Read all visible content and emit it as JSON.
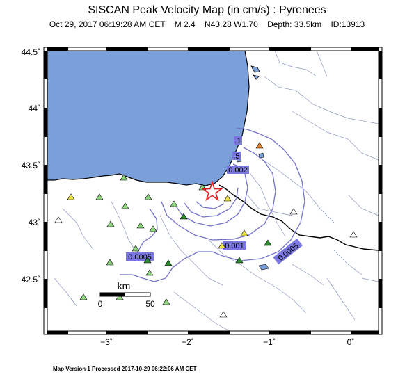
{
  "header": {
    "title": "SISCAN Peak Velocity Map (in cm/s) : Pyrenees",
    "subtitle": "Oct 29, 2017 06:19:28 AM CET    M 2.4    N43.28 W1.70    Depth: 33.5km    ID:13913"
  },
  "axes": {
    "lat_ticks": [
      "44.5˚",
      "44˚",
      "43.5˚",
      "43˚",
      "42.5˚"
    ],
    "lon_ticks": [
      "−3˚",
      "−2˚",
      "−1˚",
      "0˚"
    ]
  },
  "contours": {
    "labels": [
      "0.0005",
      "0.001",
      "0.002",
      ".5",
      ".1",
      "0.0005"
    ]
  },
  "scale_bar": {
    "unit": "km",
    "start": "0",
    "end": "50"
  },
  "epicenter": {
    "lat": 43.28,
    "lon": -1.7
  },
  "colors": {
    "sea": "#7b9fd9",
    "contour": "#7472c9",
    "label_bg": "#7a78e0",
    "land": "#ffffff"
  },
  "footer": {
    "text": "Map Version 1 Processed 2017-10-29 06:22:06 AM CET"
  }
}
